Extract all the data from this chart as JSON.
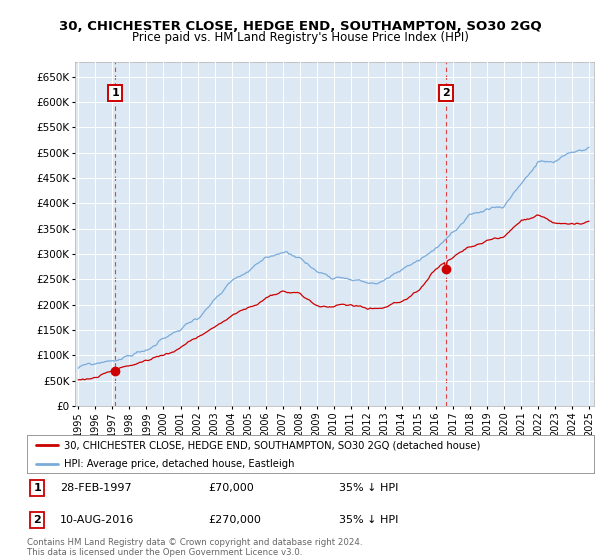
{
  "title": "30, CHICHESTER CLOSE, HEDGE END, SOUTHAMPTON, SO30 2GQ",
  "subtitle": "Price paid vs. HM Land Registry's House Price Index (HPI)",
  "legend_line1": "30, CHICHESTER CLOSE, HEDGE END, SOUTHAMPTON, SO30 2GQ (detached house)",
  "legend_line2": "HPI: Average price, detached house, Eastleigh",
  "footnote": "Contains HM Land Registry data © Crown copyright and database right 2024.\nThis data is licensed under the Open Government Licence v3.0.",
  "property_color": "#cc0000",
  "hpi_color": "#7aabda",
  "background_color": "#dce9f5",
  "marker1": {
    "label": "1",
    "date": "28-FEB-1997",
    "price": "£70,000",
    "note": "35% ↓ HPI",
    "year": 1997.16,
    "value": 70000
  },
  "marker2": {
    "label": "2",
    "date": "10-AUG-2016",
    "price": "£270,000",
    "note": "35% ↓ HPI",
    "year": 2016.61,
    "value": 270000
  },
  "ylim": [
    0,
    680000
  ],
  "xlim": [
    1994.8,
    2025.3
  ],
  "yticks": [
    0,
    50000,
    100000,
    150000,
    200000,
    250000,
    300000,
    350000,
    400000,
    450000,
    500000,
    550000,
    600000,
    650000
  ],
  "ytick_labels": [
    "£0",
    "£50K",
    "£100K",
    "£150K",
    "£200K",
    "£250K",
    "£300K",
    "£350K",
    "£400K",
    "£450K",
    "£500K",
    "£550K",
    "£600K",
    "£650K"
  ],
  "xticks": [
    1995,
    1996,
    1997,
    1998,
    1999,
    2000,
    2001,
    2002,
    2003,
    2004,
    2005,
    2006,
    2007,
    2008,
    2009,
    2010,
    2011,
    2012,
    2013,
    2014,
    2015,
    2016,
    2017,
    2018,
    2019,
    2020,
    2021,
    2022,
    2023,
    2024,
    2025
  ],
  "hpi_base": [
    75000,
    80000,
    88000,
    97000,
    110000,
    128000,
    148000,
    172000,
    205000,
    233000,
    248000,
    268000,
    285000,
    278000,
    248000,
    242000,
    248000,
    238000,
    242000,
    260000,
    280000,
    305000,
    335000,
    355000,
    368000,
    378000,
    425000,
    468000,
    465000,
    480000,
    490000
  ],
  "prop_base": [
    52000,
    58000,
    68000,
    78000,
    88000,
    100000,
    115000,
    135000,
    158000,
    178000,
    192000,
    208000,
    220000,
    215000,
    192000,
    188000,
    194000,
    185000,
    190000,
    205000,
    220000,
    258000,
    280000,
    300000,
    308000,
    315000,
    345000,
    362000,
    345000,
    348000,
    350000
  ]
}
